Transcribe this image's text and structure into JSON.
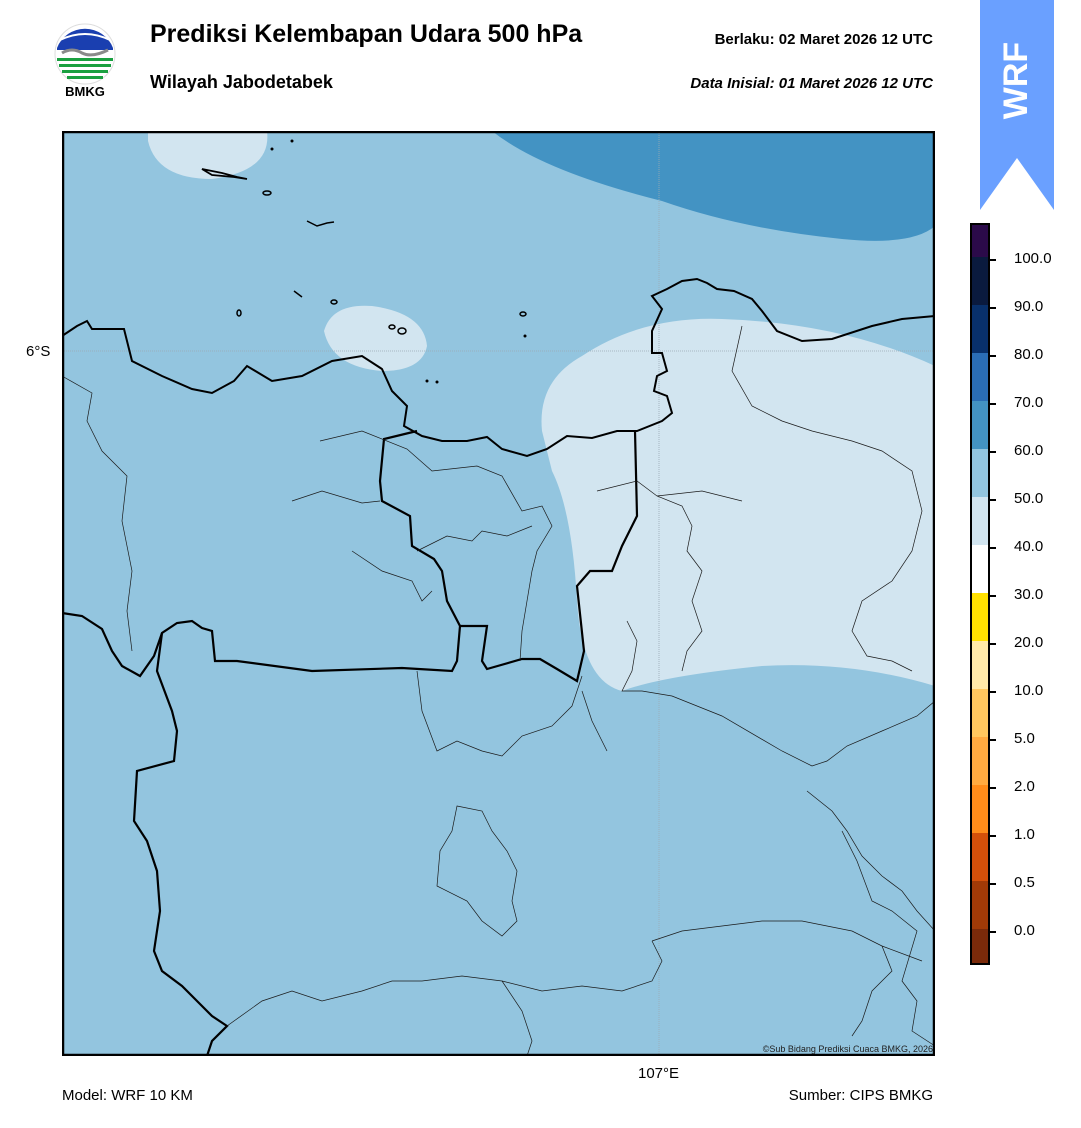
{
  "header": {
    "title": "Prediksi Kelembapan Udara 500 hPa",
    "subtitle": "Wilayah Jabodetabek",
    "valid_label": "Berlaku:  02 Maret 2026 12 UTC",
    "initial_label": "Data Inisial:  01 Maret 2026 12 UTC"
  },
  "logo": {
    "text": "BMKG",
    "icon": "bmkg-logo-icon"
  },
  "badge": {
    "text": "WRF",
    "color": "#6aa0ff"
  },
  "map": {
    "lat_label": "6°S",
    "lon_label": "107°E",
    "copyright": "©Sub Bidang Prediksi Cuaca BMKG, 2026",
    "base_color": "#93c5df",
    "light_color": "#d2e5f0",
    "dark_color": "#4393c3"
  },
  "colorbar": {
    "ticks": [
      "100.0",
      "90.0",
      "80.0",
      "70.0",
      "60.0",
      "50.0",
      "40.0",
      "30.0",
      "20.0",
      "10.0",
      "5.0",
      "2.0",
      "1.0",
      "0.5",
      "0.0"
    ],
    "colors": [
      "#2b0a4a",
      "#0a1a3e",
      "#08306b",
      "#2a6db5",
      "#4393c3",
      "#93c5df",
      "#d2e5f0",
      "#ffffff",
      "#ffe000",
      "#ffe9a8",
      "#ffc75e",
      "#ffaa40",
      "#ff8c1a",
      "#d4500a",
      "#a13a07",
      "#7a2a0a",
      "#4a1a0a",
      "#b01010",
      "#e84030"
    ]
  },
  "footer": {
    "model": "Model: WRF 10 KM",
    "source": "Sumber: CIPS BMKG"
  }
}
